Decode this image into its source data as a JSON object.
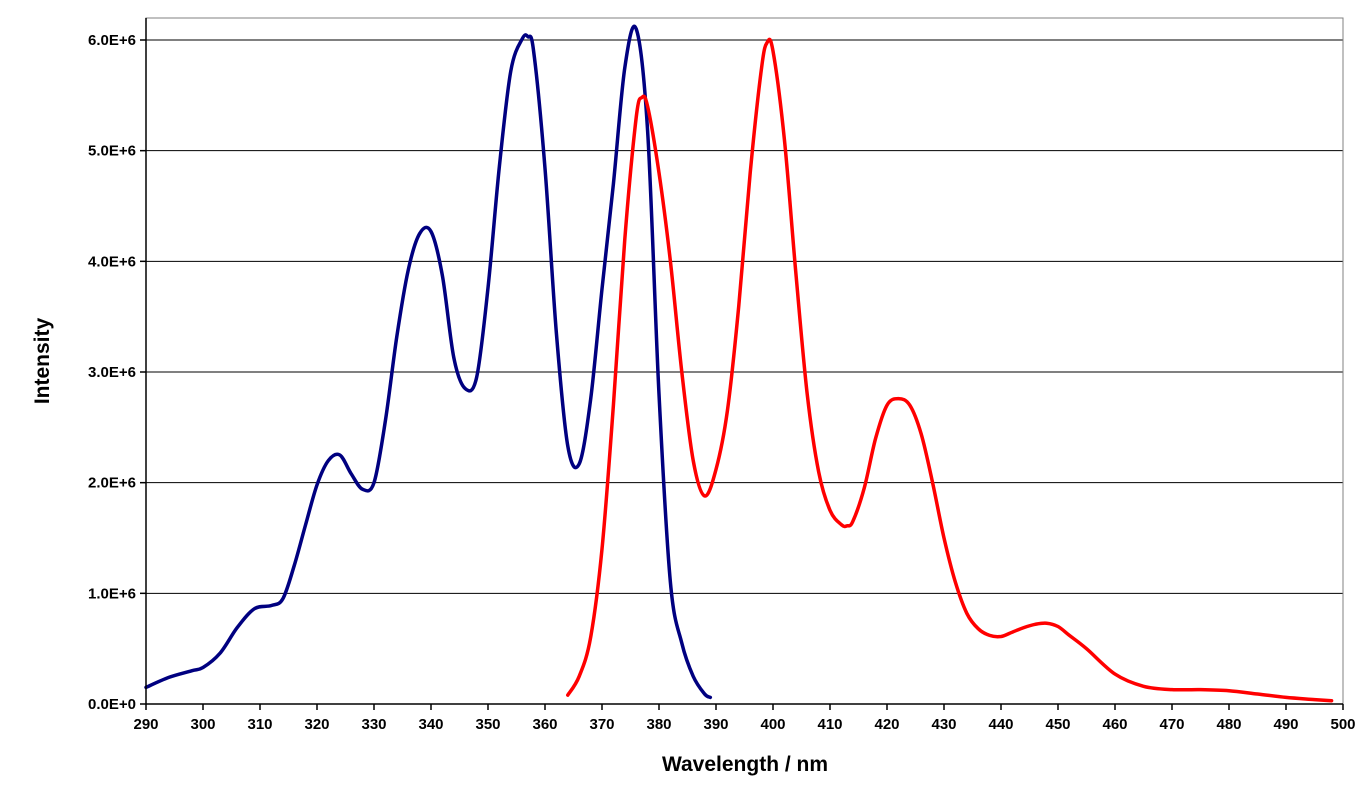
{
  "chart_data": {
    "type": "line",
    "title": "",
    "xlabel": "Wavelength / nm",
    "ylabel": "Intensity",
    "xlim": [
      290,
      500
    ],
    "ylim": [
      0,
      6000000
    ],
    "x_ticks": [
      "290",
      "300",
      "310",
      "320",
      "330",
      "340",
      "350",
      "360",
      "370",
      "380",
      "390",
      "400",
      "410",
      "420",
      "430",
      "440",
      "450",
      "460",
      "470",
      "480",
      "490",
      "500"
    ],
    "y_ticks": [
      "0.0E+0",
      "1.0E+6",
      "2.0E+6",
      "3.0E+6",
      "4.0E+6",
      "5.0E+6",
      "6.0E+6"
    ],
    "grid": "horizontal major gridlines",
    "legend": "none",
    "series": [
      {
        "color": "#000080",
        "x": [
          290,
          294,
          298,
          300,
          303,
          306,
          309,
          312,
          314,
          316,
          318,
          320,
          322,
          324,
          326,
          328,
          330,
          332,
          334,
          336,
          338,
          340,
          342,
          344,
          346,
          348,
          350,
          352,
          354,
          356,
          357,
          358,
          360,
          362,
          364,
          366,
          368,
          370,
          372,
          374,
          376,
          378,
          380,
          382,
          384,
          386,
          388,
          389
        ],
        "y": [
          150000,
          240000,
          300000,
          330000,
          460000,
          690000,
          860000,
          890000,
          950000,
          1250000,
          1620000,
          1980000,
          2200000,
          2250000,
          2080000,
          1940000,
          2000000,
          2560000,
          3320000,
          3920000,
          4250000,
          4270000,
          3870000,
          3130000,
          2850000,
          2950000,
          3760000,
          4860000,
          5720000,
          6010000,
          6030000,
          5900000,
          4840000,
          3350000,
          2330000,
          2170000,
          2750000,
          3750000,
          4700000,
          5750000,
          6100000,
          5180000,
          2800000,
          1100000,
          550000,
          250000,
          90000,
          60000
        ]
      },
      {
        "color": "#ff0000",
        "x": [
          364,
          366,
          368,
          370,
          372,
          374,
          376,
          377,
          378,
          380,
          382,
          384,
          386,
          388,
          390,
          392,
          394,
          396,
          398,
          399,
          400,
          402,
          404,
          406,
          408,
          410,
          412,
          413,
          414,
          416,
          418,
          420,
          422,
          424,
          426,
          428,
          430,
          432,
          434,
          436,
          438,
          440,
          442,
          444,
          446,
          448,
          450,
          452,
          455,
          460,
          465,
          470,
          475,
          480,
          485,
          490,
          495,
          498
        ],
        "y": [
          80000,
          250000,
          600000,
          1400000,
          2700000,
          4200000,
          5300000,
          5480000,
          5400000,
          4800000,
          4000000,
          3000000,
          2200000,
          1880000,
          2120000,
          2650000,
          3600000,
          4800000,
          5750000,
          5980000,
          5900000,
          5100000,
          3900000,
          2800000,
          2100000,
          1750000,
          1620000,
          1610000,
          1650000,
          1950000,
          2400000,
          2700000,
          2760000,
          2700000,
          2440000,
          2000000,
          1500000,
          1100000,
          820000,
          680000,
          620000,
          610000,
          650000,
          690000,
          720000,
          730000,
          700000,
          620000,
          500000,
          270000,
          160000,
          130000,
          130000,
          120000,
          90000,
          60000,
          40000,
          30000
        ]
      }
    ]
  }
}
